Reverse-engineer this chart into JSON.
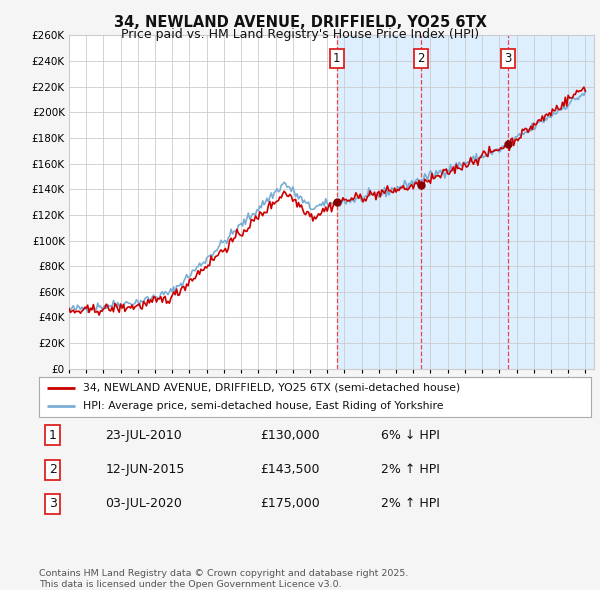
{
  "title": "34, NEWLAND AVENUE, DRIFFIELD, YO25 6TX",
  "subtitle": "Price paid vs. HM Land Registry's House Price Index (HPI)",
  "legend_property": "34, NEWLAND AVENUE, DRIFFIELD, YO25 6TX (semi-detached house)",
  "legend_hpi": "HPI: Average price, semi-detached house, East Riding of Yorkshire",
  "ylabel_max": 260000,
  "yticks": [
    0,
    20000,
    40000,
    60000,
    80000,
    100000,
    120000,
    140000,
    160000,
    180000,
    200000,
    220000,
    240000,
    260000
  ],
  "transactions": [
    {
      "num": 1,
      "date": "23-JUL-2010",
      "price": 130000,
      "pct": "6%",
      "dir": "↓",
      "x": 2010.55
    },
    {
      "num": 2,
      "date": "12-JUN-2015",
      "price": 143500,
      "pct": "2%",
      "dir": "↑",
      "x": 2015.45
    },
    {
      "num": 3,
      "date": "03-JUL-2020",
      "price": 175000,
      "pct": "2%",
      "dir": "↑",
      "x": 2020.51
    }
  ],
  "row_data": [
    {
      "num": "1",
      "date": "23-JUL-2010",
      "price": "£130,000",
      "info": "6% ↓ HPI"
    },
    {
      "num": "2",
      "date": "12-JUN-2015",
      "price": "£143,500",
      "info": "2% ↑ HPI"
    },
    {
      "num": "3",
      "date": "03-JUL-2020",
      "price": "£175,000",
      "info": "2% ↑ HPI"
    }
  ],
  "footer": "Contains HM Land Registry data © Crown copyright and database right 2025.\nThis data is licensed under the Open Government Licence v3.0.",
  "property_color": "#cc0000",
  "hpi_color": "#7aadd4",
  "background_color": "#f5f5f5",
  "plot_bg": "#ffffff",
  "highlight_bg": "#ddeeff",
  "grid_color": "#cccccc",
  "dashed_color": "#ee3333",
  "label_box_color": "#dd2222"
}
